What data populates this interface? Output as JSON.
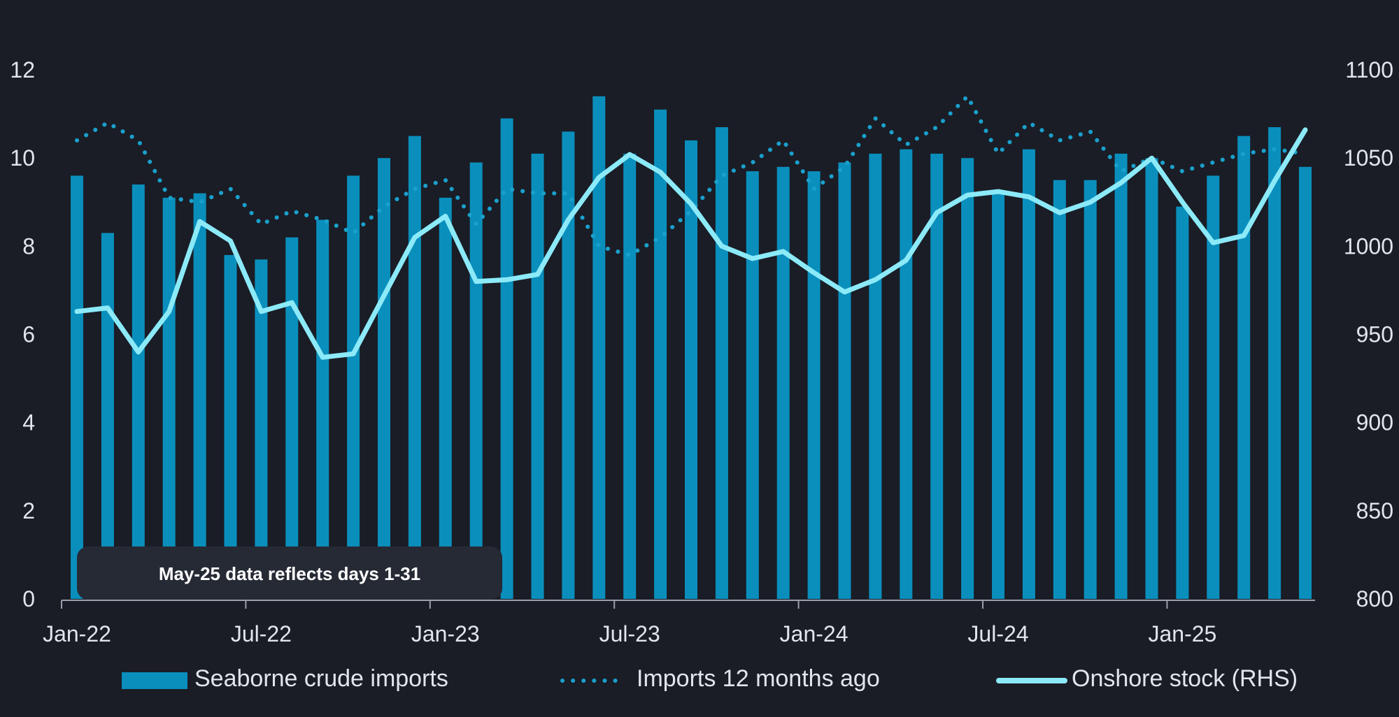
{
  "chart_data": {
    "type": "bar",
    "x": [
      "Jan-22",
      "Feb-22",
      "Mar-22",
      "Apr-22",
      "May-22",
      "Jun-22",
      "Jul-22",
      "Aug-22",
      "Sep-22",
      "Oct-22",
      "Nov-22",
      "Dec-22",
      "Jan-23",
      "Feb-23",
      "Mar-23",
      "Apr-23",
      "May-23",
      "Jun-23",
      "Jul-23",
      "Aug-23",
      "Sep-23",
      "Oct-23",
      "Nov-23",
      "Dec-23",
      "Jan-24",
      "Feb-24",
      "Mar-24",
      "Apr-24",
      "May-24",
      "Jun-24",
      "Jul-24",
      "Aug-24",
      "Sep-24",
      "Oct-24",
      "Nov-24",
      "Dec-24",
      "Jan-25",
      "Feb-25",
      "Mar-25",
      "Apr-25",
      "May-25"
    ],
    "x_tick_labels": [
      "Jan-22",
      "Jul-22",
      "Jan-23",
      "Jul-23",
      "Jan-24",
      "Jul-24",
      "Jan-25"
    ],
    "series": [
      {
        "name": "Seaborne crude imports",
        "kind": "bar",
        "axis": "left",
        "color": "#0a8fbd",
        "values": [
          9.6,
          8.3,
          9.4,
          9.1,
          9.2,
          7.8,
          7.7,
          8.2,
          8.6,
          9.6,
          10.0,
          10.5,
          9.1,
          9.9,
          10.9,
          10.1,
          10.6,
          11.4,
          10.1,
          11.1,
          10.4,
          10.7,
          9.7,
          9.8,
          9.7,
          9.9,
          10.1,
          10.2,
          10.1,
          10.0,
          9.2,
          10.2,
          9.5,
          9.5,
          10.1,
          10.0,
          8.9,
          9.6,
          10.5,
          10.7,
          9.8
        ]
      },
      {
        "name": "Imports 12 months ago",
        "kind": "dotted-line",
        "axis": "left",
        "color": "#1aa0cc",
        "values": [
          10.4,
          10.8,
          10.4,
          9.1,
          9.0,
          9.3,
          8.5,
          8.8,
          8.6,
          8.3,
          8.9,
          9.3,
          9.5,
          8.5,
          9.3,
          9.2,
          9.2,
          8.0,
          7.8,
          8.2,
          8.8,
          9.6,
          9.9,
          10.4,
          9.3,
          9.8,
          10.9,
          10.3,
          10.7,
          11.4,
          10.1,
          10.8,
          10.4,
          10.6,
          9.7,
          10.0,
          9.7,
          9.9,
          10.1,
          10.2,
          10.1
        ]
      },
      {
        "name": "Onshore stock (RHS)",
        "kind": "line",
        "axis": "right",
        "color": "#8ceaf8",
        "values": [
          963,
          965,
          940,
          963,
          1014,
          1003,
          963,
          968,
          937,
          939,
          972,
          1005,
          1017,
          980,
          981,
          984,
          1015,
          1039,
          1052,
          1042,
          1024,
          1000,
          993,
          997,
          985,
          974,
          981,
          992,
          1019,
          1029,
          1031,
          1028,
          1019,
          1025,
          1036,
          1050,
          1025,
          1002,
          1006,
          1037,
          1066
        ]
      }
    ],
    "ylim_left": [
      0,
      12
    ],
    "yticks_left": [
      0,
      2,
      4,
      6,
      8,
      10,
      12
    ],
    "ylim_right": [
      800,
      1100
    ],
    "yticks_right": [
      800,
      850,
      900,
      950,
      1000,
      1050,
      1100
    ],
    "legend_position": "bottom",
    "grid": false,
    "annotation": "May-25 data reflects days 1-31"
  },
  "colors": {
    "background": "#1a1d26",
    "axis": "#9aa0ad",
    "note_box": "#262a35"
  }
}
